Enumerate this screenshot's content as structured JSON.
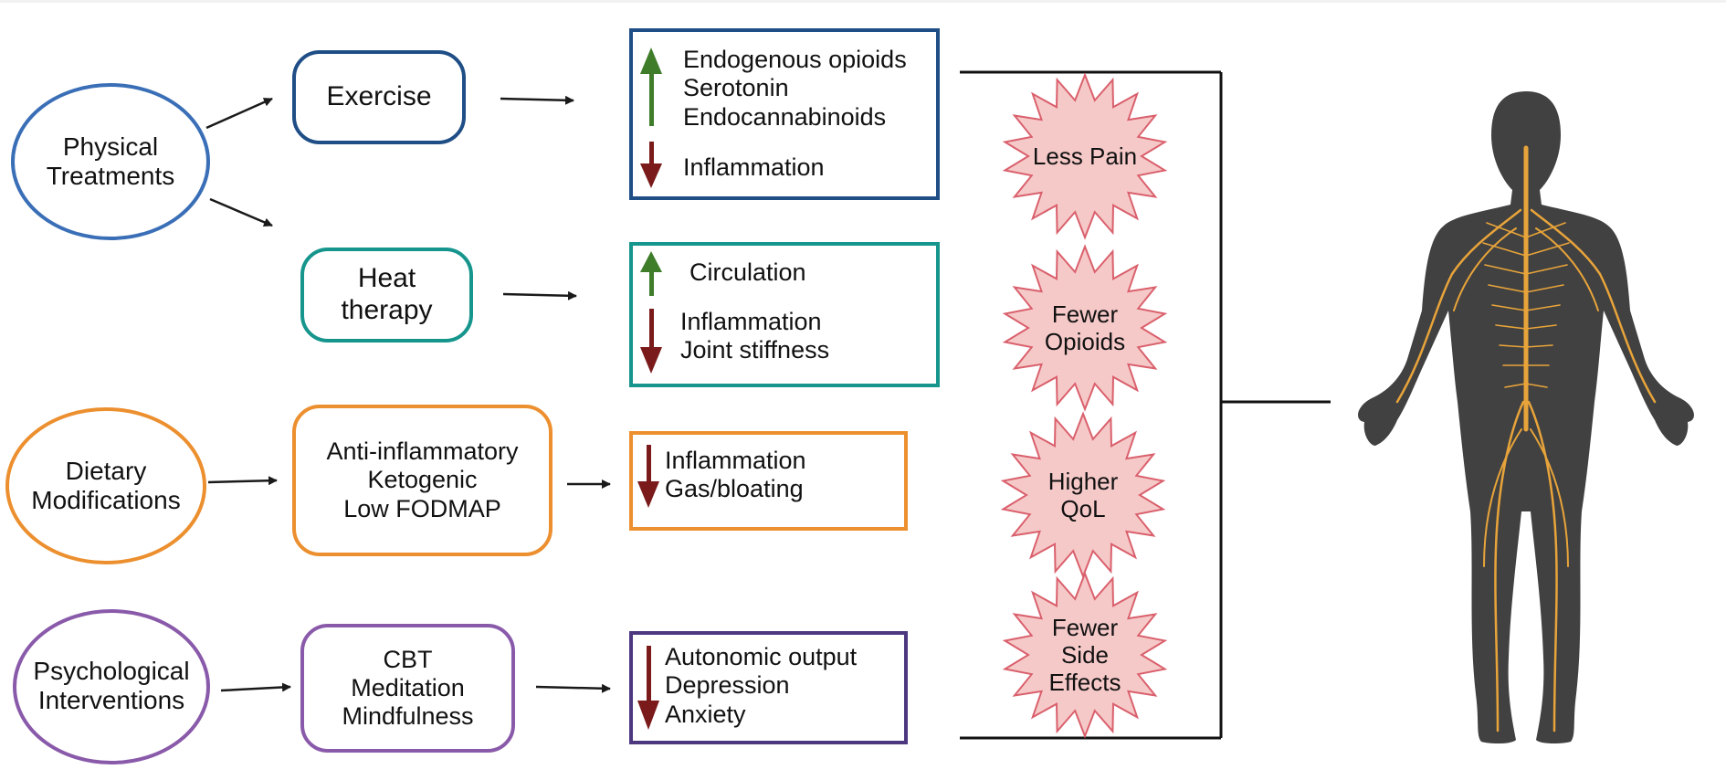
{
  "sources": {
    "physical": [
      "Physical",
      "Treatments"
    ],
    "dietary": [
      "Dietary",
      "Modifications"
    ],
    "psychological": [
      "Psychological",
      "Interventions"
    ]
  },
  "treatments": {
    "exercise": [
      "Exercise"
    ],
    "heat": [
      "Heat",
      "therapy"
    ],
    "diet": [
      "Anti-inflammatory",
      "Ketogenic",
      "Low FODMAP"
    ],
    "psych": [
      "CBT",
      "Meditation",
      "Mindfulness"
    ]
  },
  "effects": {
    "exercise_up": [
      "Endogenous opioids",
      "Serotonin",
      "Endocannabinoids"
    ],
    "exercise_down": [
      "Inflammation"
    ],
    "heat_up": [
      "Circulation"
    ],
    "heat_down": [
      "Inflammation",
      "Joint stiffness"
    ],
    "diet_down": [
      "Inflammation",
      "Gas/bloating"
    ],
    "psych_down": [
      "Autonomic output",
      "Depression",
      "Anxiety"
    ]
  },
  "outcomes": [
    [
      "Less Pain"
    ],
    [
      "Fewer",
      "Opioids"
    ],
    [
      "Higher",
      "QoL"
    ],
    [
      "Fewer",
      "Side",
      "Effects"
    ]
  ],
  "colors": {
    "blue": "#3a6fb7",
    "navy": "#1f4e86",
    "teal": "#16958d",
    "orange": "#ec8f2f",
    "purple": "#8a5aaa",
    "dark_purple": "#4d3880",
    "up_arrow": "#3f7d2a",
    "down_arrow": "#7a1a1a",
    "burst_fill": "#f6c9c9",
    "burst_stroke": "#d9606c",
    "body": "#414141",
    "nerve": "#e8a43a"
  },
  "icons": {
    "up": "up-arrow-icon",
    "down": "down-arrow-icon",
    "figure": "human-nervous-system-figure"
  }
}
